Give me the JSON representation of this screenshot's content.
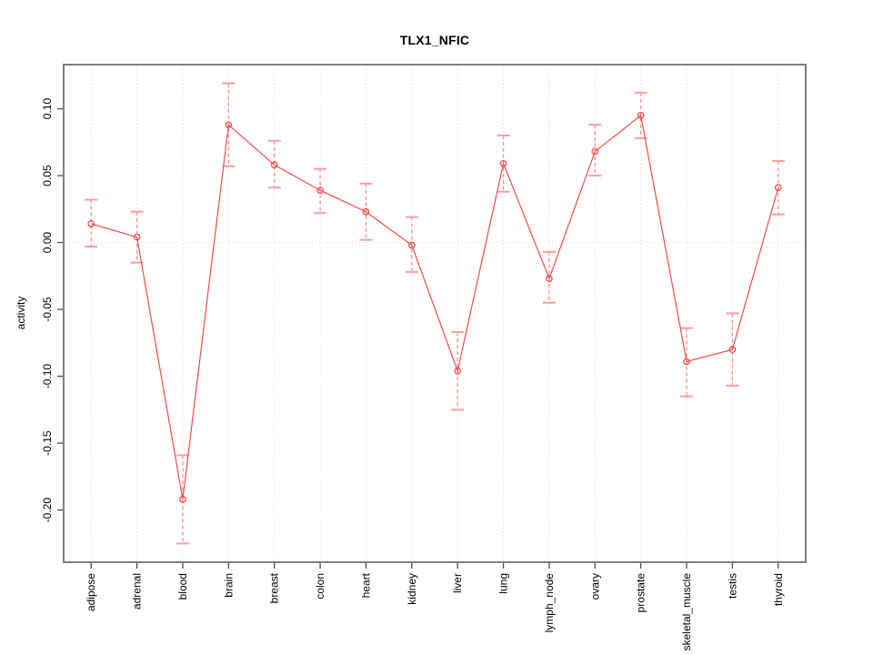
{
  "chart_data": {
    "type": "line",
    "title": "TLX1_NFIC",
    "xlabel": "",
    "ylabel": "activity",
    "categories": [
      "adipose",
      "adrenal",
      "blood",
      "brain",
      "breast",
      "colon",
      "heart",
      "kidney",
      "liver",
      "lung",
      "lymph_node",
      "ovary",
      "prostate",
      "skeletal_muscle",
      "testis",
      "thyroid"
    ],
    "series": [
      {
        "name": "activity",
        "values": [
          0.014,
          0.004,
          -0.192,
          0.088,
          0.058,
          0.039,
          0.023,
          -0.002,
          -0.096,
          0.059,
          -0.027,
          0.068,
          0.095,
          -0.089,
          -0.08,
          0.041
        ],
        "error_upper": [
          0.032,
          0.023,
          -0.159,
          0.119,
          0.076,
          0.055,
          0.044,
          0.019,
          -0.067,
          0.08,
          -0.007,
          0.088,
          0.112,
          -0.064,
          -0.053,
          0.061
        ],
        "error_lower": [
          -0.003,
          -0.015,
          -0.225,
          0.057,
          0.041,
          0.022,
          0.002,
          -0.022,
          -0.125,
          0.038,
          -0.045,
          0.05,
          0.078,
          -0.115,
          -0.107,
          0.021
        ]
      }
    ],
    "ylim": [
      -0.239,
      0.133
    ],
    "yticks": [
      0.1,
      0.05,
      0.0,
      -0.05,
      -0.1,
      -0.15,
      -0.2
    ],
    "ytick_labels": [
      "0.10",
      "0.05",
      "0.00",
      "-0.05",
      "-0.10",
      "-0.15",
      "-0.20"
    ],
    "grid": "vertical-dotted-per-category-plus-zero-line",
    "legend": "none",
    "marker": "open-circle",
    "error_bars": true,
    "colors": {
      "series_line": "#f84a4a",
      "point_stroke": "#f84a4a",
      "error_bar_line": "#ff8d8d",
      "error_bar_cap": "#ff9c9c",
      "gridline": "#dadada",
      "zero_line": "#dadada",
      "plot_border": "#7f7f7f",
      "tick_mark": "#4d4d4d",
      "label_text": "#000000",
      "background": "#ffffff"
    }
  }
}
